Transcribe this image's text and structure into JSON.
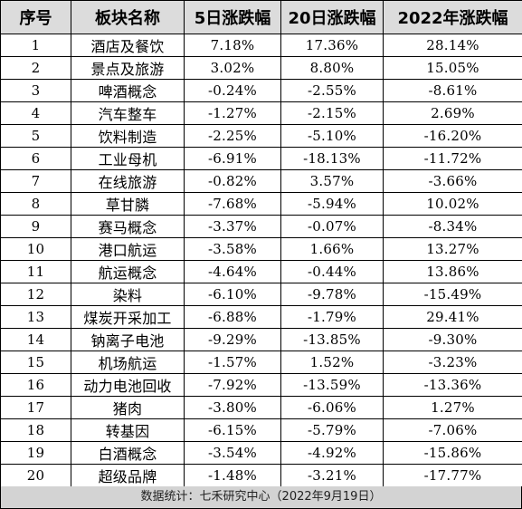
{
  "table": {
    "headers": [
      "序号",
      "板块名称",
      "5日涨跌幅",
      "20日涨跌幅",
      "2022年涨跌幅"
    ],
    "rows": [
      [
        "1",
        "酒店及餐饮",
        "7.18%",
        "17.36%",
        "28.14%"
      ],
      [
        "2",
        "景点及旅游",
        "3.02%",
        "8.80%",
        "15.05%"
      ],
      [
        "3",
        "啤酒概念",
        "-0.24%",
        "-2.55%",
        "-8.61%"
      ],
      [
        "4",
        "汽车整车",
        "-1.27%",
        "-2.15%",
        "2.69%"
      ],
      [
        "5",
        "饮料制造",
        "-2.25%",
        "-5.10%",
        "-16.20%"
      ],
      [
        "6",
        "工业母机",
        "-6.91%",
        "-18.13%",
        "-11.72%"
      ],
      [
        "7",
        "在线旅游",
        "-0.82%",
        "3.57%",
        "-3.66%"
      ],
      [
        "8",
        "草甘膦",
        "-7.68%",
        "-5.94%",
        "10.02%"
      ],
      [
        "9",
        "赛马概念",
        "-3.37%",
        "-0.07%",
        "-8.34%"
      ],
      [
        "10",
        "港口航运",
        "-3.58%",
        "1.66%",
        "13.27%"
      ],
      [
        "11",
        "航运概念",
        "-4.64%",
        "-0.44%",
        "13.86%"
      ],
      [
        "12",
        "染料",
        "-6.10%",
        "-9.78%",
        "-15.49%"
      ],
      [
        "13",
        "煤炭开采加工",
        "-6.88%",
        "-1.79%",
        "29.41%"
      ],
      [
        "14",
        "钠离子电池",
        "-9.29%",
        "-13.85%",
        "-9.30%"
      ],
      [
        "15",
        "机场航运",
        "-1.57%",
        "1.52%",
        "-3.23%"
      ],
      [
        "16",
        "动力电池回收",
        "-7.92%",
        "-13.59%",
        "-13.36%"
      ],
      [
        "17",
        "猪肉",
        "-3.80%",
        "-6.06%",
        "1.27%"
      ],
      [
        "18",
        "转基因",
        "-6.15%",
        "-5.79%",
        "-7.06%"
      ],
      [
        "19",
        "白酒概念",
        "-3.54%",
        "-4.92%",
        "-15.86%"
      ],
      [
        "20",
        "超级品牌",
        "-1.48%",
        "-3.21%",
        "-17.77%"
      ]
    ]
  },
  "footer": {
    "source_note": "数据统计：七禾研究中心（2022年9月19日）"
  },
  "colors": {
    "header_bg": "#dcdcdc",
    "footer_bg": "#d3d3d3",
    "border": "#000000"
  }
}
